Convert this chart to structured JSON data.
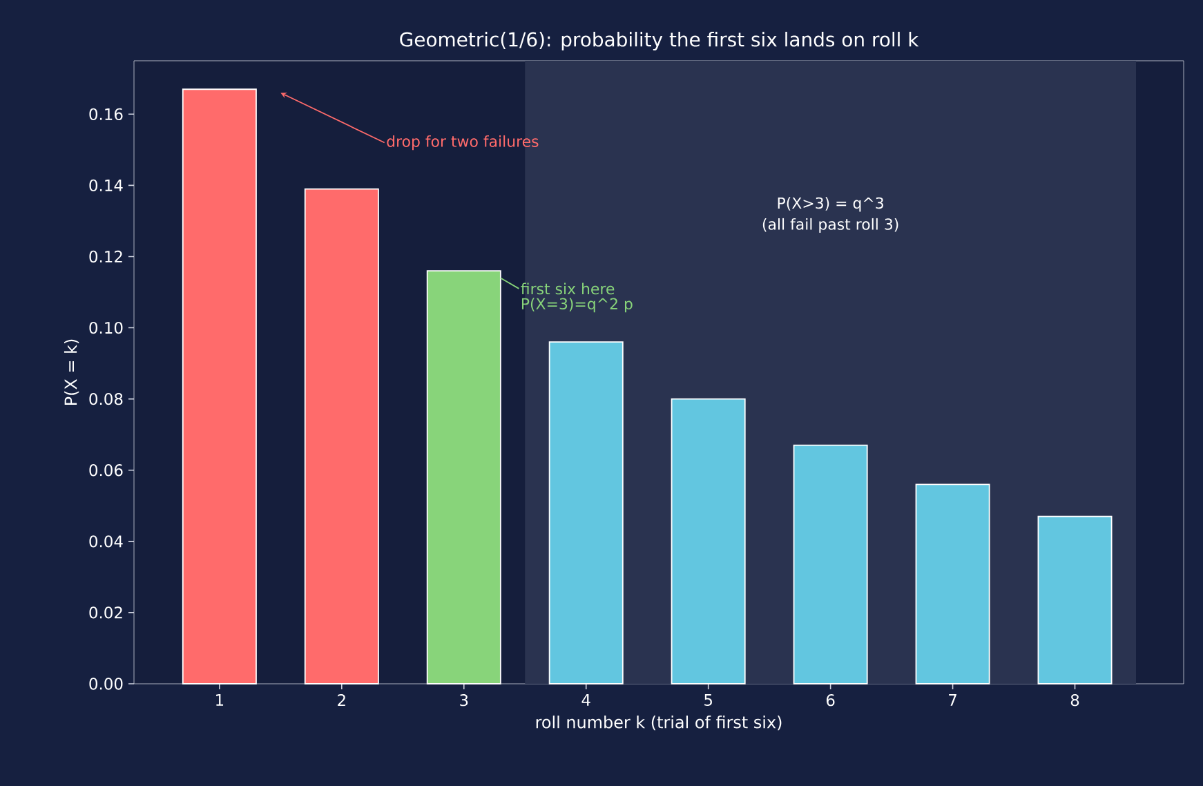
{
  "chart_data": {
    "type": "bar",
    "title": "Geometric(1/6): probability the first six lands on roll k",
    "xlabel": "roll number k (trial of first six)",
    "ylabel": "P(X = k)",
    "x": [
      1,
      2,
      3,
      4,
      5,
      6,
      7,
      8
    ],
    "values": [
      0.167,
      0.139,
      0.116,
      0.096,
      0.08,
      0.067,
      0.056,
      0.047
    ],
    "colors": [
      "#ff6b6b",
      "#ff6b6b",
      "#88d47a",
      "#62c6e0",
      "#62c6e0",
      "#62c6e0",
      "#62c6e0",
      "#62c6e0"
    ],
    "xlim": [
      0.3,
      8.89
    ],
    "xticks": [
      1,
      2,
      3,
      4,
      5,
      6,
      7,
      8
    ],
    "ylim": [
      0,
      0.175
    ],
    "yticks": [
      {
        "value": 0,
        "label": "0.00"
      },
      {
        "value": 0.02,
        "label": "0.02"
      },
      {
        "value": 0.04,
        "label": "0.04"
      },
      {
        "value": 0.06,
        "label": "0.06"
      },
      {
        "value": 0.08,
        "label": "0.08"
      },
      {
        "value": 0.1,
        "label": "0.10"
      },
      {
        "value": 0.12,
        "label": "0.12"
      },
      {
        "value": 0.14,
        "label": "0.14"
      },
      {
        "value": 0.16,
        "label": "0.16"
      }
    ],
    "bands": [
      {
        "axis": "x",
        "from": 3.5,
        "to": 8.5,
        "label": "P(X>3) = q^3",
        "color": "#2a3350"
      }
    ],
    "annotations": [
      "drop for two failures",
      "first six here",
      "P(X=3)=q^2 p",
      "(all fail past roll 3)"
    ],
    "grid": false
  }
}
